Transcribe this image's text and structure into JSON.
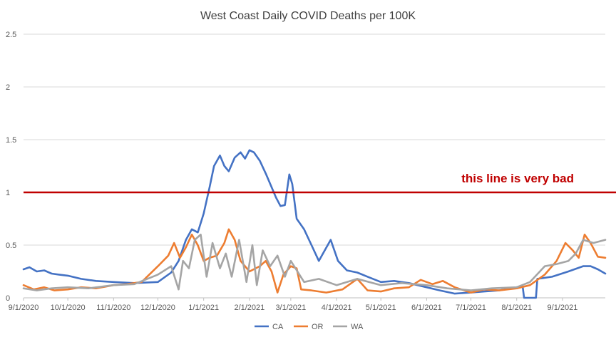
{
  "chart_data": {
    "type": "line",
    "title": "West Coast Daily COVID Deaths per 100K",
    "xlabel": "",
    "ylabel": "",
    "ylim": [
      0,
      2.5
    ],
    "y_ticks": [
      "0",
      "0.5",
      "1",
      "1.5",
      "2",
      "2.5"
    ],
    "x_ticks": [
      "9/1/2020",
      "10/1/2020",
      "11/1/2020",
      "12/1/2020",
      "1/1/2021",
      "2/1/2021",
      "3/1/2021",
      "4/1/2021",
      "5/1/2021",
      "6/1/2021",
      "7/1/2021",
      "8/1/2021",
      "9/1/2021"
    ],
    "x_range": [
      "2020-09-01",
      "2021-09-30"
    ],
    "grid": "horizontal",
    "legend_position": "bottom",
    "reference_line": {
      "y": 1.0,
      "color": "#c00000",
      "label": "this line is very bad"
    },
    "series": [
      {
        "name": "CA",
        "color": "#4472c4",
        "points": [
          [
            "2020-09-01",
            0.27
          ],
          [
            "2020-09-05",
            0.29
          ],
          [
            "2020-09-10",
            0.25
          ],
          [
            "2020-09-15",
            0.26
          ],
          [
            "2020-09-20",
            0.23
          ],
          [
            "2020-09-25",
            0.22
          ],
          [
            "2020-10-01",
            0.21
          ],
          [
            "2020-10-10",
            0.18
          ],
          [
            "2020-10-20",
            0.16
          ],
          [
            "2020-11-01",
            0.15
          ],
          [
            "2020-11-15",
            0.14
          ],
          [
            "2020-12-01",
            0.15
          ],
          [
            "2020-12-10",
            0.24
          ],
          [
            "2020-12-15",
            0.35
          ],
          [
            "2020-12-20",
            0.55
          ],
          [
            "2020-12-24",
            0.65
          ],
          [
            "2020-12-28",
            0.62
          ],
          [
            "2021-01-01",
            0.8
          ],
          [
            "2021-01-05",
            1.05
          ],
          [
            "2021-01-08",
            1.25
          ],
          [
            "2021-01-12",
            1.35
          ],
          [
            "2021-01-15",
            1.25
          ],
          [
            "2021-01-18",
            1.2
          ],
          [
            "2021-01-22",
            1.33
          ],
          [
            "2021-01-26",
            1.38
          ],
          [
            "2021-01-29",
            1.32
          ],
          [
            "2021-02-01",
            1.4
          ],
          [
            "2021-02-04",
            1.38
          ],
          [
            "2021-02-08",
            1.3
          ],
          [
            "2021-02-12",
            1.18
          ],
          [
            "2021-02-16",
            1.05
          ],
          [
            "2021-02-19",
            0.95
          ],
          [
            "2021-02-22",
            0.87
          ],
          [
            "2021-02-25",
            0.88
          ],
          [
            "2021-02-28",
            1.17
          ],
          [
            "2021-03-02",
            1.08
          ],
          [
            "2021-03-05",
            0.75
          ],
          [
            "2021-03-10",
            0.65
          ],
          [
            "2021-03-15",
            0.5
          ],
          [
            "2021-03-20",
            0.35
          ],
          [
            "2021-03-24",
            0.45
          ],
          [
            "2021-03-28",
            0.55
          ],
          [
            "2021-04-02",
            0.35
          ],
          [
            "2021-04-08",
            0.26
          ],
          [
            "2021-04-15",
            0.24
          ],
          [
            "2021-04-22",
            0.2
          ],
          [
            "2021-05-01",
            0.15
          ],
          [
            "2021-05-10",
            0.16
          ],
          [
            "2021-05-20",
            0.14
          ],
          [
            "2021-06-01",
            0.1
          ],
          [
            "2021-06-10",
            0.07
          ],
          [
            "2021-06-20",
            0.04
          ],
          [
            "2021-07-01",
            0.05
          ],
          [
            "2021-07-10",
            0.06
          ],
          [
            "2021-07-20",
            0.07
          ],
          [
            "2021-08-01",
            0.1
          ],
          [
            "2021-08-05",
            0.11
          ],
          [
            "2021-08-06",
            0.0
          ],
          [
            "2021-08-14",
            0.0
          ],
          [
            "2021-08-15",
            0.18
          ],
          [
            "2021-08-25",
            0.2
          ],
          [
            "2021-09-05",
            0.25
          ],
          [
            "2021-09-15",
            0.3
          ],
          [
            "2021-09-20",
            0.3
          ],
          [
            "2021-09-25",
            0.27
          ],
          [
            "2021-09-30",
            0.23
          ]
        ]
      },
      {
        "name": "OR",
        "color": "#ed7d31",
        "points": [
          [
            "2020-09-01",
            0.12
          ],
          [
            "2020-09-08",
            0.08
          ],
          [
            "2020-09-15",
            0.1
          ],
          [
            "2020-09-22",
            0.07
          ],
          [
            "2020-10-01",
            0.08
          ],
          [
            "2020-10-10",
            0.1
          ],
          [
            "2020-10-20",
            0.09
          ],
          [
            "2020-11-01",
            0.12
          ],
          [
            "2020-11-10",
            0.13
          ],
          [
            "2020-11-20",
            0.15
          ],
          [
            "2020-12-01",
            0.3
          ],
          [
            "2020-12-08",
            0.4
          ],
          [
            "2020-12-12",
            0.52
          ],
          [
            "2020-12-16",
            0.38
          ],
          [
            "2020-12-20",
            0.48
          ],
          [
            "2020-12-24",
            0.6
          ],
          [
            "2020-12-28",
            0.5
          ],
          [
            "2021-01-01",
            0.35
          ],
          [
            "2021-01-05",
            0.38
          ],
          [
            "2021-01-10",
            0.4
          ],
          [
            "2021-01-15",
            0.52
          ],
          [
            "2021-01-18",
            0.65
          ],
          [
            "2021-01-22",
            0.55
          ],
          [
            "2021-01-26",
            0.35
          ],
          [
            "2021-02-01",
            0.25
          ],
          [
            "2021-02-08",
            0.3
          ],
          [
            "2021-02-12",
            0.35
          ],
          [
            "2021-02-16",
            0.25
          ],
          [
            "2021-02-20",
            0.05
          ],
          [
            "2021-02-24",
            0.22
          ],
          [
            "2021-03-01",
            0.3
          ],
          [
            "2021-03-05",
            0.28
          ],
          [
            "2021-03-08",
            0.08
          ],
          [
            "2021-03-15",
            0.07
          ],
          [
            "2021-03-25",
            0.05
          ],
          [
            "2021-04-05",
            0.08
          ],
          [
            "2021-04-15",
            0.18
          ],
          [
            "2021-04-22",
            0.07
          ],
          [
            "2021-05-01",
            0.06
          ],
          [
            "2021-05-10",
            0.09
          ],
          [
            "2021-05-20",
            0.1
          ],
          [
            "2021-05-28",
            0.17
          ],
          [
            "2021-06-05",
            0.13
          ],
          [
            "2021-06-12",
            0.16
          ],
          [
            "2021-06-20",
            0.1
          ],
          [
            "2021-07-01",
            0.05
          ],
          [
            "2021-07-10",
            0.08
          ],
          [
            "2021-07-20",
            0.07
          ],
          [
            "2021-08-01",
            0.09
          ],
          [
            "2021-08-10",
            0.12
          ],
          [
            "2021-08-20",
            0.22
          ],
          [
            "2021-08-28",
            0.35
          ],
          [
            "2021-09-03",
            0.52
          ],
          [
            "2021-09-08",
            0.45
          ],
          [
            "2021-09-12",
            0.38
          ],
          [
            "2021-09-16",
            0.6
          ],
          [
            "2021-09-20",
            0.52
          ],
          [
            "2021-09-25",
            0.39
          ],
          [
            "2021-09-30",
            0.38
          ]
        ]
      },
      {
        "name": "WA",
        "color": "#a5a5a5",
        "points": [
          [
            "2020-09-01",
            0.09
          ],
          [
            "2020-09-10",
            0.07
          ],
          [
            "2020-09-20",
            0.09
          ],
          [
            "2020-10-01",
            0.1
          ],
          [
            "2020-10-15",
            0.09
          ],
          [
            "2020-11-01",
            0.12
          ],
          [
            "2020-11-15",
            0.13
          ],
          [
            "2020-12-01",
            0.22
          ],
          [
            "2020-12-10",
            0.3
          ],
          [
            "2020-12-15",
            0.08
          ],
          [
            "2020-12-18",
            0.35
          ],
          [
            "2020-12-22",
            0.28
          ],
          [
            "2020-12-26",
            0.55
          ],
          [
            "2020-12-30",
            0.6
          ],
          [
            "2021-01-03",
            0.2
          ],
          [
            "2021-01-07",
            0.52
          ],
          [
            "2021-01-12",
            0.28
          ],
          [
            "2021-01-16",
            0.42
          ],
          [
            "2021-01-20",
            0.2
          ],
          [
            "2021-01-25",
            0.55
          ],
          [
            "2021-01-30",
            0.15
          ],
          [
            "2021-02-03",
            0.5
          ],
          [
            "2021-02-06",
            0.12
          ],
          [
            "2021-02-10",
            0.45
          ],
          [
            "2021-02-15",
            0.3
          ],
          [
            "2021-02-20",
            0.4
          ],
          [
            "2021-02-25",
            0.2
          ],
          [
            "2021-03-01",
            0.35
          ],
          [
            "2021-03-10",
            0.15
          ],
          [
            "2021-03-20",
            0.18
          ],
          [
            "2021-04-01",
            0.12
          ],
          [
            "2021-04-15",
            0.18
          ],
          [
            "2021-05-01",
            0.12
          ],
          [
            "2021-05-15",
            0.14
          ],
          [
            "2021-06-01",
            0.12
          ],
          [
            "2021-06-15",
            0.09
          ],
          [
            "2021-07-01",
            0.07
          ],
          [
            "2021-07-15",
            0.09
          ],
          [
            "2021-08-01",
            0.1
          ],
          [
            "2021-08-10",
            0.15
          ],
          [
            "2021-08-20",
            0.3
          ],
          [
            "2021-08-28",
            0.32
          ],
          [
            "2021-09-05",
            0.35
          ],
          [
            "2021-09-10",
            0.42
          ],
          [
            "2021-09-15",
            0.55
          ],
          [
            "2021-09-22",
            0.52
          ],
          [
            "2021-09-30",
            0.55
          ]
        ]
      }
    ]
  }
}
